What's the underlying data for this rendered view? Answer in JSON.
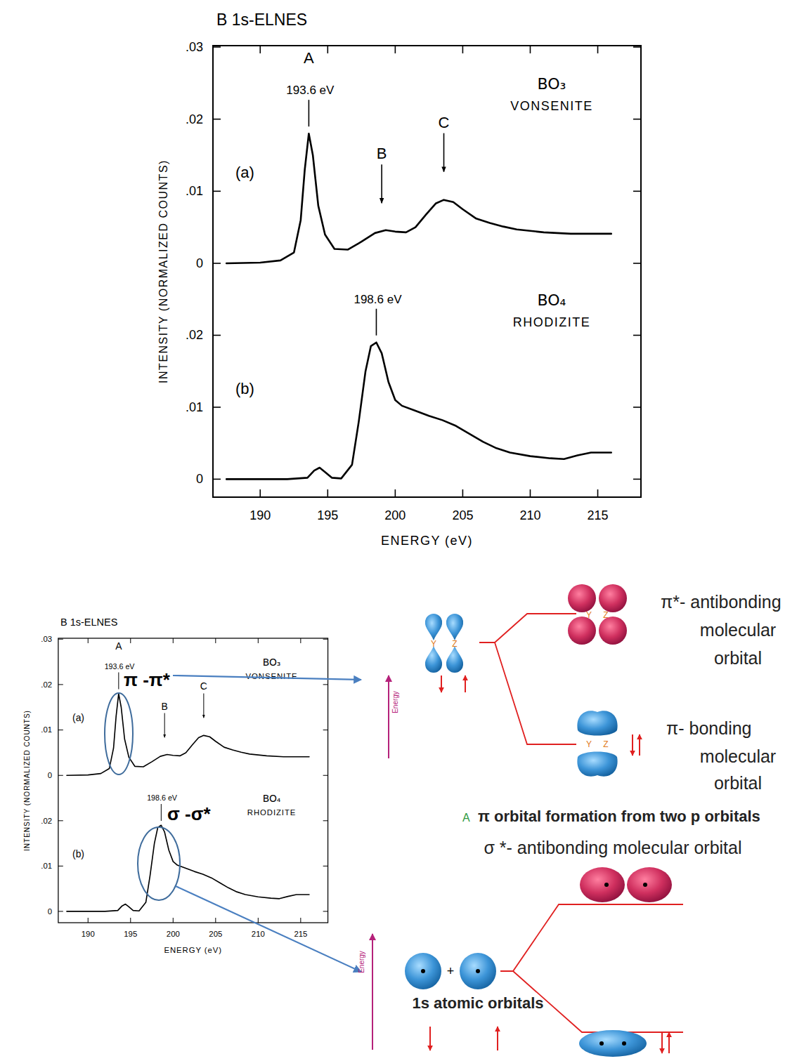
{
  "chart_data": {
    "type": "line",
    "title": "B 1s-ELNES",
    "x_label": "ENERGY (eV)",
    "y_label": "INTENSITY (NORMALIZED COUNTS)",
    "xlim": [
      186.5,
      218.2
    ],
    "xticks": [
      190,
      195,
      200,
      205,
      210,
      215
    ],
    "panels": [
      {
        "label": "(a)",
        "subtitle": "VONSENITE",
        "ylim": [
          0,
          0.03
        ],
        "yticks": [
          0,
          {
            "value": 0.01,
            "label": ".01"
          },
          {
            "value": 0.02,
            "label": ".02"
          },
          {
            "value": 0.03,
            "label": ".03"
          }
        ],
        "x": [
          187.5,
          190,
          191.5,
          192.5,
          193,
          193.3,
          193.6,
          193.9,
          194.3,
          194.8,
          195.5,
          196.5,
          197.5,
          198.5,
          199.3,
          200,
          200.8,
          201.5,
          202.3,
          203,
          203.6,
          204.3,
          205,
          206,
          207,
          208,
          209,
          211,
          213,
          216
        ],
        "series": [
          {
            "name": "BO₃",
            "color": "#000000",
            "values": [
              0,
              0.0001,
              0.0004,
              0.0015,
              0.006,
              0.013,
              0.018,
              0.015,
              0.008,
              0.004,
              0.002,
              0.0019,
              0.003,
              0.0042,
              0.0046,
              0.0044,
              0.0043,
              0.005,
              0.0068,
              0.0083,
              0.0088,
              0.0085,
              0.0075,
              0.0062,
              0.0056,
              0.0051,
              0.0047,
              0.0043,
              0.0041,
              0.0041
            ]
          }
        ],
        "peaks": [
          {
            "label": "A",
            "value_label": "193.6 eV",
            "x": 193.6
          },
          {
            "label": "B",
            "x": 199.0
          },
          {
            "label": "C",
            "x": 203.6
          }
        ]
      },
      {
        "label": "(b)",
        "subtitle": "RHODIZITE",
        "ylim": [
          -0.0025,
          0.03
        ],
        "yticks": [
          0,
          {
            "value": 0.01,
            "label": ".01"
          },
          {
            "value": 0.02,
            "label": ".02"
          }
        ],
        "x": [
          187.5,
          192,
          193.5,
          194,
          194.4,
          194.8,
          195.3,
          196,
          196.8,
          197.3,
          197.8,
          198.2,
          198.6,
          199,
          199.5,
          200,
          200.5,
          201.5,
          202.5,
          203.5,
          204.5,
          205.5,
          206.5,
          207.5,
          208.5,
          210,
          211.5,
          212.5,
          213.5,
          214.5,
          216
        ],
        "series": [
          {
            "name": "BO₄",
            "color": "#000000",
            "values": [
              0,
              0,
              0.0002,
              0.0012,
              0.0016,
              0.001,
              0.0002,
              0.0001,
              0.002,
              0.008,
              0.015,
              0.0185,
              0.019,
              0.0175,
              0.0135,
              0.011,
              0.0102,
              0.0095,
              0.0088,
              0.0082,
              0.0074,
              0.0063,
              0.0052,
              0.0043,
              0.0037,
              0.0032,
              0.0029,
              0.0028,
              0.0033,
              0.0037,
              0.0037
            ]
          }
        ],
        "peaks": [
          {
            "value_label": "198.6 eV",
            "x": 198.6
          }
        ]
      }
    ]
  },
  "diagram": {
    "pi_annotation": "π -π*",
    "sigma_annotation": "σ -σ*",
    "pi_panel": {
      "energy": "Energy",
      "orbital_labels": [
        "Y",
        "Z"
      ],
      "antibonding": [
        "π*- antibonding",
        "molecular",
        "orbital"
      ],
      "bonding": [
        "π- bonding",
        "molecular",
        "orbital"
      ],
      "caption_letter": "A",
      "caption": "π orbital formation from two p orbitals"
    },
    "sigma_panel": {
      "energy": "Energy",
      "antibonding": "σ *- antibonding molecular orbital",
      "plus": "+",
      "atomic": "1s atomic orbitals"
    }
  }
}
